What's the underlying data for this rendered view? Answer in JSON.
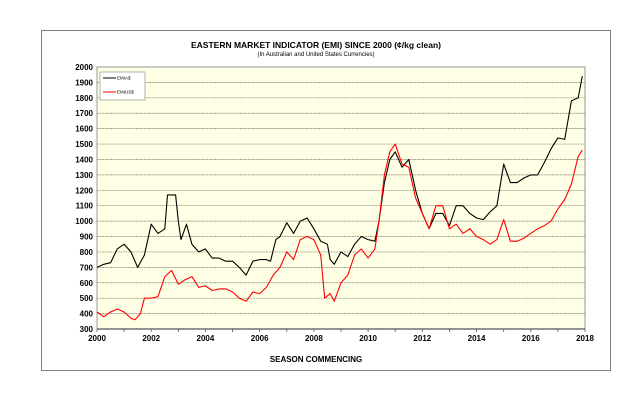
{
  "chart_data": {
    "type": "line",
    "title": "EASTERN MARKET INDICATOR (EMI) SINCE 2000 (¢/kg clean)",
    "subtitle": "(In Australian and United States Currencies)",
    "xlabel": "SEASON COMMENCING",
    "ylabel": "",
    "xlim": [
      2000,
      2018
    ],
    "ylim": [
      300,
      2000
    ],
    "x_ticks": [
      2000,
      2002,
      2004,
      2006,
      2008,
      2010,
      2012,
      2014,
      2016,
      2018
    ],
    "y_ticks": [
      300,
      400,
      500,
      600,
      700,
      800,
      900,
      1000,
      1100,
      1200,
      1300,
      1400,
      1500,
      1600,
      1700,
      1800,
      1900,
      2000
    ],
    "grid": "horizontal",
    "legend_position": "top-left",
    "plot_background": "#FFFFE5",
    "series": [
      {
        "name": "EMIA$",
        "color": "#000000",
        "x": [
          2000.0,
          2000.25,
          2000.5,
          2000.75,
          2001.0,
          2001.25,
          2001.5,
          2001.75,
          2002.0,
          2002.25,
          2002.5,
          2002.6,
          2002.9,
          2003.0,
          2003.1,
          2003.3,
          2003.5,
          2003.75,
          2004.0,
          2004.25,
          2004.5,
          2004.75,
          2005.0,
          2005.25,
          2005.5,
          2005.75,
          2006.0,
          2006.25,
          2006.4,
          2006.6,
          2006.75,
          2007.0,
          2007.25,
          2007.5,
          2007.75,
          2008.0,
          2008.25,
          2008.5,
          2008.6,
          2008.75,
          2009.0,
          2009.25,
          2009.5,
          2009.75,
          2010.0,
          2010.25,
          2010.4,
          2010.6,
          2010.8,
          2011.0,
          2011.25,
          2011.5,
          2011.75,
          2012.0,
          2012.25,
          2012.5,
          2012.75,
          2013.0,
          2013.25,
          2013.5,
          2013.75,
          2014.0,
          2014.25,
          2014.5,
          2014.75,
          2015.0,
          2015.25,
          2015.5,
          2015.75,
          2016.0,
          2016.25,
          2016.5,
          2016.75,
          2017.0,
          2017.25,
          2017.5,
          2017.75,
          2017.9
        ],
        "y": [
          700,
          720,
          730,
          820,
          850,
          800,
          700,
          780,
          980,
          920,
          950,
          1170,
          1170,
          1000,
          880,
          980,
          850,
          800,
          820,
          760,
          760,
          740,
          740,
          700,
          650,
          740,
          750,
          750,
          740,
          880,
          900,
          990,
          920,
          1000,
          1020,
          950,
          870,
          850,
          750,
          720,
          800,
          770,
          850,
          900,
          880,
          870,
          1000,
          1250,
          1400,
          1450,
          1350,
          1400,
          1200,
          1050,
          950,
          1050,
          1050,
          970,
          1100,
          1100,
          1050,
          1020,
          1010,
          1060,
          1100,
          1370,
          1250,
          1250,
          1280,
          1300,
          1300,
          1380,
          1470,
          1540,
          1530,
          1780,
          1800,
          1940
        ]
      },
      {
        "name": "EMIUS$",
        "color": "#FF0000",
        "x": [
          2000.0,
          2000.25,
          2000.5,
          2000.75,
          2001.0,
          2001.25,
          2001.4,
          2001.6,
          2001.75,
          2002.0,
          2002.25,
          2002.5,
          2002.75,
          2003.0,
          2003.25,
          2003.5,
          2003.75,
          2004.0,
          2004.25,
          2004.5,
          2004.75,
          2005.0,
          2005.25,
          2005.5,
          2005.75,
          2006.0,
          2006.25,
          2006.5,
          2006.75,
          2007.0,
          2007.25,
          2007.5,
          2007.75,
          2008.0,
          2008.25,
          2008.4,
          2008.6,
          2008.75,
          2009.0,
          2009.25,
          2009.5,
          2009.75,
          2010.0,
          2010.25,
          2010.4,
          2010.6,
          2010.8,
          2011.0,
          2011.25,
          2011.5,
          2011.75,
          2012.0,
          2012.25,
          2012.5,
          2012.75,
          2013.0,
          2013.25,
          2013.5,
          2013.75,
          2014.0,
          2014.25,
          2014.5,
          2014.75,
          2015.0,
          2015.25,
          2015.5,
          2015.75,
          2016.0,
          2016.25,
          2016.5,
          2016.75,
          2017.0,
          2017.25,
          2017.5,
          2017.75,
          2017.9
        ],
        "y": [
          410,
          380,
          410,
          430,
          410,
          370,
          360,
          400,
          500,
          500,
          510,
          640,
          680,
          590,
          620,
          640,
          570,
          580,
          550,
          560,
          560,
          540,
          500,
          480,
          540,
          530,
          570,
          650,
          700,
          800,
          750,
          880,
          900,
          880,
          780,
          500,
          530,
          480,
          600,
          650,
          780,
          820,
          760,
          820,
          1000,
          1300,
          1450,
          1500,
          1370,
          1350,
          1150,
          1050,
          950,
          1100,
          1100,
          950,
          980,
          920,
          950,
          900,
          880,
          850,
          880,
          1010,
          870,
          870,
          890,
          920,
          950,
          970,
          1000,
          1080,
          1140,
          1240,
          1420,
          1460
        ]
      }
    ]
  }
}
